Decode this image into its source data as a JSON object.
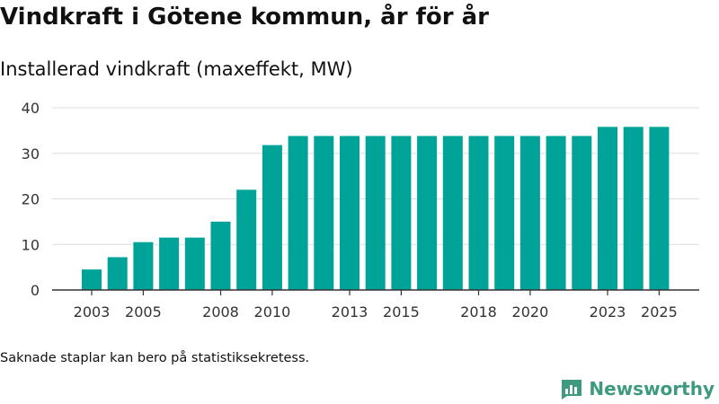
{
  "header": {
    "title": "Vindkraft i Götene kommun, år för år",
    "subtitle": "Installerad vindkraft (maxeffekt, MW)"
  },
  "footnote": "Saknade staplar kan bero på statistiksekretess.",
  "brand": {
    "name": "Newsworthy",
    "logo_icon": "bar-chart-flag-icon"
  },
  "colors": {
    "bar": "#00a398",
    "grid": "#dddddd",
    "axis": "#333333",
    "brand": "#3d9a7f"
  },
  "chart_data": {
    "type": "bar",
    "title": "Vindkraft i Götene kommun, år för år",
    "subtitle": "Installerad vindkraft (maxeffekt, MW)",
    "xlabel": "",
    "ylabel": "",
    "ylim": [
      0,
      40
    ],
    "yticks": [
      0,
      10,
      20,
      30,
      40
    ],
    "categories": [
      2003,
      2004,
      2005,
      2006,
      2007,
      2008,
      2009,
      2010,
      2011,
      2012,
      2013,
      2014,
      2015,
      2016,
      2017,
      2018,
      2019,
      2020,
      2021,
      2022,
      2023,
      2024,
      2025
    ],
    "values": [
      4.5,
      7.2,
      10.5,
      11.5,
      11.5,
      15.0,
      22.0,
      31.8,
      33.8,
      33.8,
      33.8,
      33.8,
      33.8,
      33.8,
      33.8,
      33.8,
      33.8,
      33.8,
      33.8,
      33.8,
      35.8,
      35.8,
      35.8
    ],
    "xtick_labels": [
      2003,
      2005,
      2008,
      2010,
      2013,
      2015,
      2018,
      2020,
      2023,
      2025
    ],
    "grid": true,
    "legend": "none"
  }
}
